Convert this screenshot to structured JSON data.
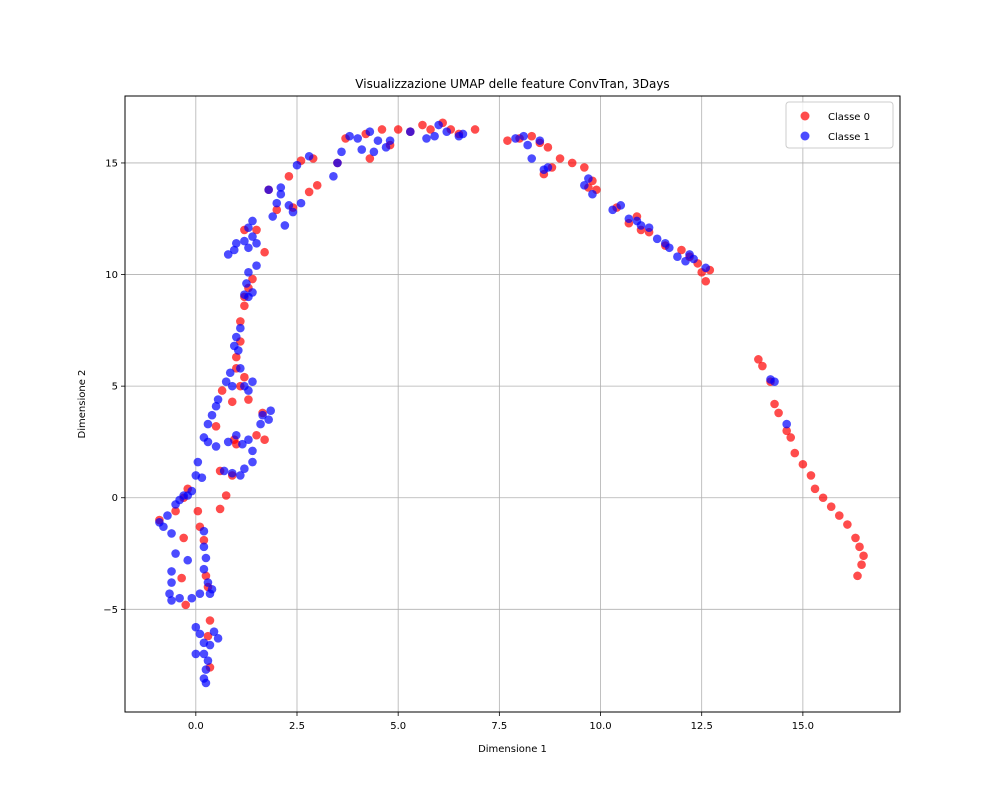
{
  "chart_data": {
    "type": "scatter",
    "title": "Visualizzazione UMAP delle feature ConvTran, 3Days",
    "xlabel": "Dimensione 1",
    "ylabel": "Dimensione 2",
    "xlim": [
      -1.75,
      17.4
    ],
    "ylim": [
      -9.6,
      18.0
    ],
    "xticks": [
      0.0,
      2.5,
      5.0,
      7.5,
      10.0,
      12.5,
      15.0
    ],
    "xtick_labels": [
      "0.0",
      "2.5",
      "5.0",
      "7.5",
      "10.0",
      "12.5",
      "15.0"
    ],
    "yticks": [
      -5,
      0,
      5,
      10,
      15
    ],
    "ytick_labels": [
      "−5",
      "0",
      "5",
      "10",
      "15"
    ],
    "grid": true,
    "legend_position": "top-right",
    "series": [
      {
        "name": "Classe 0",
        "color": "#ff0000",
        "points": [
          [
            -0.9,
            -1.0
          ],
          [
            -0.5,
            -0.6
          ],
          [
            -0.3,
            0.0
          ],
          [
            -0.2,
            0.4
          ],
          [
            -0.3,
            -1.8
          ],
          [
            -0.35,
            -3.6
          ],
          [
            -0.25,
            -4.8
          ],
          [
            0.05,
            -0.6
          ],
          [
            0.1,
            -1.3
          ],
          [
            0.2,
            -1.9
          ],
          [
            0.25,
            -3.5
          ],
          [
            0.3,
            -4.0
          ],
          [
            0.35,
            -5.5
          ],
          [
            0.3,
            -6.2
          ],
          [
            0.35,
            -7.6
          ],
          [
            0.6,
            -0.5
          ],
          [
            0.75,
            0.1
          ],
          [
            0.6,
            1.2
          ],
          [
            0.9,
            1.0
          ],
          [
            1.0,
            2.4
          ],
          [
            0.95,
            2.6
          ],
          [
            0.5,
            3.2
          ],
          [
            0.65,
            4.8
          ],
          [
            0.9,
            4.3
          ],
          [
            1.1,
            5.0
          ],
          [
            1.3,
            4.4
          ],
          [
            1.2,
            5.4
          ],
          [
            1.0,
            5.8
          ],
          [
            1.0,
            6.3
          ],
          [
            1.1,
            7.0
          ],
          [
            1.1,
            7.9
          ],
          [
            1.2,
            8.6
          ],
          [
            1.2,
            9.0
          ],
          [
            1.3,
            9.4
          ],
          [
            1.4,
            9.8
          ],
          [
            1.7,
            11.0
          ],
          [
            1.5,
            12.0
          ],
          [
            1.2,
            12.0
          ],
          [
            1.7,
            2.6
          ],
          [
            1.65,
            3.8
          ],
          [
            1.5,
            2.8
          ],
          [
            1.8,
            13.8
          ],
          [
            2.0,
            12.9
          ],
          [
            2.4,
            13.0
          ],
          [
            2.3,
            14.4
          ],
          [
            2.6,
            15.1
          ],
          [
            2.9,
            15.2
          ],
          [
            3.0,
            14.0
          ],
          [
            2.8,
            13.7
          ],
          [
            3.5,
            15.0
          ],
          [
            3.7,
            16.1
          ],
          [
            4.2,
            16.3
          ],
          [
            4.6,
            16.5
          ],
          [
            4.3,
            15.2
          ],
          [
            4.8,
            15.8
          ],
          [
            5.0,
            16.5
          ],
          [
            5.3,
            16.4
          ],
          [
            5.6,
            16.7
          ],
          [
            5.8,
            16.5
          ],
          [
            6.1,
            16.8
          ],
          [
            6.3,
            16.5
          ],
          [
            6.5,
            16.3
          ],
          [
            6.9,
            16.5
          ],
          [
            7.7,
            16.0
          ],
          [
            8.0,
            16.1
          ],
          [
            8.3,
            16.2
          ],
          [
            8.5,
            15.9
          ],
          [
            8.7,
            15.7
          ],
          [
            8.8,
            14.8
          ],
          [
            8.6,
            14.5
          ],
          [
            9.0,
            15.2
          ],
          [
            9.3,
            15.0
          ],
          [
            9.6,
            14.8
          ],
          [
            9.8,
            14.2
          ],
          [
            9.9,
            13.8
          ],
          [
            9.7,
            13.9
          ],
          [
            10.4,
            13.0
          ],
          [
            10.7,
            12.3
          ],
          [
            10.9,
            12.6
          ],
          [
            11.0,
            12.0
          ],
          [
            11.2,
            11.9
          ],
          [
            11.6,
            11.3
          ],
          [
            12.0,
            11.1
          ],
          [
            12.2,
            10.8
          ],
          [
            12.4,
            10.5
          ],
          [
            12.5,
            10.1
          ],
          [
            12.6,
            9.7
          ],
          [
            12.7,
            10.2
          ],
          [
            13.9,
            6.2
          ],
          [
            14.0,
            5.9
          ],
          [
            14.2,
            5.2
          ],
          [
            14.3,
            4.2
          ],
          [
            14.4,
            3.8
          ],
          [
            14.6,
            3.0
          ],
          [
            14.7,
            2.7
          ],
          [
            14.8,
            2.0
          ],
          [
            15.0,
            1.5
          ],
          [
            15.2,
            1.0
          ],
          [
            15.3,
            0.4
          ],
          [
            15.5,
            0.0
          ],
          [
            15.7,
            -0.4
          ],
          [
            15.9,
            -0.8
          ],
          [
            16.1,
            -1.2
          ],
          [
            16.3,
            -1.8
          ],
          [
            16.4,
            -2.2
          ],
          [
            16.5,
            -2.6
          ],
          [
            16.45,
            -3.0
          ],
          [
            16.35,
            -3.5
          ]
        ]
      },
      {
        "name": "Classe 1",
        "color": "#0000ff",
        "points": [
          [
            -0.9,
            -1.1
          ],
          [
            -0.8,
            -1.3
          ],
          [
            -0.7,
            -0.8
          ],
          [
            -0.6,
            -1.6
          ],
          [
            -0.5,
            -0.3
          ],
          [
            -0.4,
            -0.1
          ],
          [
            -0.3,
            0.1
          ],
          [
            -0.2,
            0.1
          ],
          [
            -0.1,
            0.3
          ],
          [
            -0.5,
            -2.5
          ],
          [
            -0.6,
            -3.3
          ],
          [
            -0.6,
            -3.8
          ],
          [
            -0.65,
            -4.3
          ],
          [
            -0.6,
            -4.6
          ],
          [
            -0.4,
            -4.5
          ],
          [
            -0.2,
            -2.8
          ],
          [
            -0.1,
            -4.5
          ],
          [
            0.1,
            -4.3
          ],
          [
            0.0,
            1.0
          ],
          [
            0.05,
            1.6
          ],
          [
            0.15,
            0.9
          ],
          [
            0.2,
            -1.5
          ],
          [
            0.2,
            -2.2
          ],
          [
            0.25,
            -2.7
          ],
          [
            0.2,
            -3.2
          ],
          [
            0.3,
            -3.8
          ],
          [
            0.4,
            -4.1
          ],
          [
            0.35,
            -4.3
          ],
          [
            0.0,
            -5.8
          ],
          [
            0.1,
            -6.1
          ],
          [
            0.2,
            -6.5
          ],
          [
            0.0,
            -7.0
          ],
          [
            0.2,
            -7.0
          ],
          [
            0.3,
            -7.3
          ],
          [
            0.25,
            -7.7
          ],
          [
            0.2,
            -8.1
          ],
          [
            0.25,
            -8.3
          ],
          [
            0.45,
            -6.0
          ],
          [
            0.55,
            -6.3
          ],
          [
            0.35,
            -6.6
          ],
          [
            0.2,
            2.7
          ],
          [
            0.3,
            3.3
          ],
          [
            0.4,
            3.7
          ],
          [
            0.5,
            4.1
          ],
          [
            0.55,
            4.4
          ],
          [
            0.3,
            2.5
          ],
          [
            0.5,
            2.3
          ],
          [
            0.7,
            1.2
          ],
          [
            0.9,
            1.1
          ],
          [
            1.1,
            1.0
          ],
          [
            1.2,
            1.3
          ],
          [
            1.4,
            1.6
          ],
          [
            1.4,
            2.1
          ],
          [
            1.3,
            2.6
          ],
          [
            0.8,
            2.5
          ],
          [
            1.0,
            2.8
          ],
          [
            1.15,
            2.4
          ],
          [
            0.75,
            5.2
          ],
          [
            0.85,
            5.6
          ],
          [
            0.9,
            5.0
          ],
          [
            1.1,
            5.8
          ],
          [
            1.2,
            5.0
          ],
          [
            1.4,
            5.2
          ],
          [
            1.3,
            4.8
          ],
          [
            0.95,
            6.8
          ],
          [
            1.0,
            7.2
          ],
          [
            1.05,
            6.6
          ],
          [
            1.1,
            7.6
          ],
          [
            1.2,
            9.1
          ],
          [
            1.3,
            9.0
          ],
          [
            1.4,
            9.2
          ],
          [
            1.25,
            9.6
          ],
          [
            0.8,
            10.9
          ],
          [
            0.95,
            11.1
          ],
          [
            1.0,
            11.4
          ],
          [
            1.2,
            11.5
          ],
          [
            1.3,
            11.2
          ],
          [
            1.5,
            11.4
          ],
          [
            1.4,
            11.7
          ],
          [
            1.3,
            12.1
          ],
          [
            1.4,
            12.4
          ],
          [
            1.5,
            10.4
          ],
          [
            1.3,
            10.1
          ],
          [
            1.65,
            3.7
          ],
          [
            1.85,
            3.9
          ],
          [
            1.8,
            3.5
          ],
          [
            1.6,
            3.3
          ],
          [
            1.8,
            13.8
          ],
          [
            2.0,
            13.2
          ],
          [
            2.1,
            13.6
          ],
          [
            2.2,
            12.2
          ],
          [
            2.3,
            13.1
          ],
          [
            2.4,
            12.8
          ],
          [
            2.5,
            14.9
          ],
          [
            2.6,
            13.2
          ],
          [
            2.8,
            15.3
          ],
          [
            2.1,
            13.9
          ],
          [
            1.9,
            12.6
          ],
          [
            3.4,
            14.4
          ],
          [
            3.6,
            15.5
          ],
          [
            3.8,
            16.2
          ],
          [
            4.0,
            16.1
          ],
          [
            4.1,
            15.6
          ],
          [
            4.3,
            16.4
          ],
          [
            4.4,
            15.5
          ],
          [
            4.5,
            16.0
          ],
          [
            4.7,
            15.7
          ],
          [
            4.8,
            16.0
          ],
          [
            3.5,
            15.0
          ],
          [
            5.3,
            16.4
          ],
          [
            5.7,
            16.1
          ],
          [
            6.0,
            16.7
          ],
          [
            6.2,
            16.4
          ],
          [
            6.6,
            16.3
          ],
          [
            6.5,
            16.2
          ],
          [
            5.9,
            16.2
          ],
          [
            7.9,
            16.1
          ],
          [
            8.1,
            16.2
          ],
          [
            8.2,
            15.8
          ],
          [
            8.3,
            15.2
          ],
          [
            8.5,
            16.0
          ],
          [
            8.6,
            14.7
          ],
          [
            8.7,
            14.8
          ],
          [
            9.6,
            14.0
          ],
          [
            9.8,
            13.6
          ],
          [
            9.7,
            14.3
          ],
          [
            10.3,
            12.9
          ],
          [
            10.5,
            13.1
          ],
          [
            10.7,
            12.5
          ],
          [
            10.9,
            12.4
          ],
          [
            11.0,
            12.2
          ],
          [
            11.2,
            12.1
          ],
          [
            11.4,
            11.6
          ],
          [
            11.6,
            11.4
          ],
          [
            11.7,
            11.2
          ],
          [
            11.9,
            10.8
          ],
          [
            12.1,
            10.6
          ],
          [
            12.2,
            10.9
          ],
          [
            12.3,
            10.7
          ],
          [
            12.6,
            10.3
          ],
          [
            14.2,
            5.3
          ],
          [
            14.3,
            5.2
          ],
          [
            14.6,
            3.3
          ]
        ]
      }
    ]
  }
}
